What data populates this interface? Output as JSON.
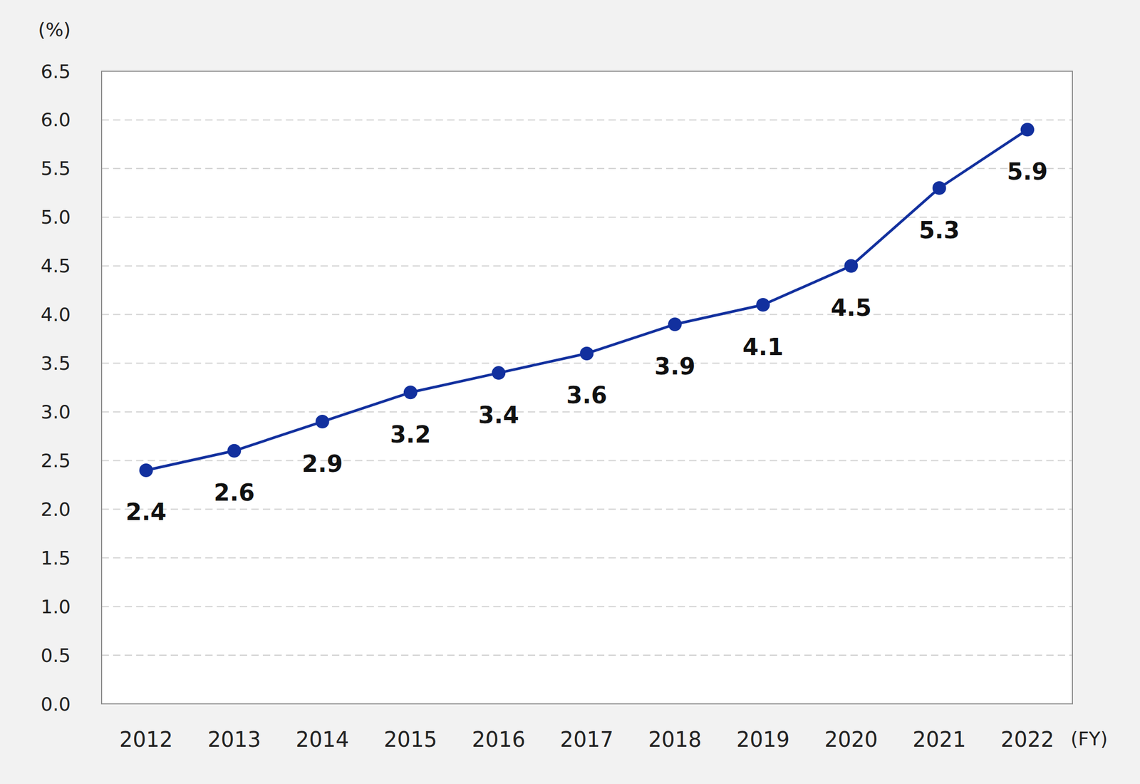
{
  "chart_data": {
    "type": "line",
    "y_label": "(%)",
    "x_label": "(FY)",
    "categories": [
      "2012",
      "2013",
      "2014",
      "2015",
      "2016",
      "2017",
      "2018",
      "2019",
      "2020",
      "2021",
      "2022"
    ],
    "values": [
      2.4,
      2.6,
      2.9,
      3.2,
      3.4,
      3.6,
      3.9,
      4.1,
      4.5,
      5.3,
      5.9
    ],
    "color": "#12309e",
    "marker": "circle",
    "ylim": [
      0,
      6.5
    ],
    "yticks": [
      {
        "value": 0,
        "label": "0.0"
      },
      0.5,
      {
        "value": 1,
        "label": "1.0"
      },
      1.5,
      {
        "value": 2,
        "label": "2.0"
      },
      2.5,
      {
        "value": 3,
        "label": "3.0"
      },
      3.5,
      {
        "value": 4,
        "label": "4.0"
      },
      4.5,
      {
        "value": 5,
        "label": "5.0"
      },
      5.5,
      {
        "value": 6,
        "label": "6.0"
      },
      6.5
    ],
    "grid": true,
    "data_labels": true
  }
}
